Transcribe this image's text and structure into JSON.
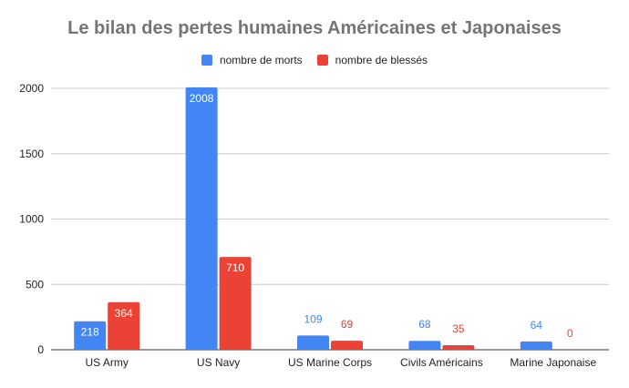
{
  "chart_data": {
    "type": "bar",
    "title": "Le bilan des pertes humaines Américaines et Japonaises",
    "categories": [
      "US Army",
      "US Navy",
      "US Marine Corps",
      "Civils Américains",
      "Marine Japonaise"
    ],
    "series": [
      {
        "name": "nombre de morts",
        "color": "#4285f4",
        "values": [
          218,
          2008,
          109,
          68,
          64
        ]
      },
      {
        "name": "nombre de blessés",
        "color": "#ea4335",
        "values": [
          364,
          710,
          69,
          35,
          0
        ]
      }
    ],
    "yticks": [
      0,
      500,
      1000,
      1500,
      2000
    ],
    "ylim": [
      0,
      2000
    ],
    "grid": true,
    "legend": "top",
    "data_labels": true
  }
}
